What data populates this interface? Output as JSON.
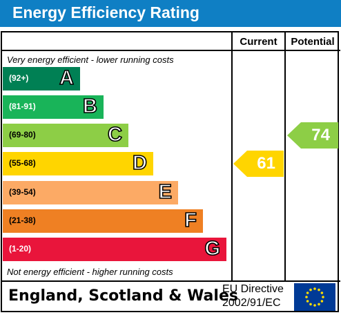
{
  "title": "Energy Efficiency Rating",
  "columns": {
    "current": "Current",
    "potential": "Potential"
  },
  "notes": {
    "top": "Very energy efficient - lower running costs",
    "bottom": "Not energy efficient - higher running costs"
  },
  "chart_data": {
    "type": "bar",
    "title": "Energy Efficiency Rating",
    "categories": [
      "A",
      "B",
      "C",
      "D",
      "E",
      "F",
      "G"
    ],
    "ranges": [
      "(92+)",
      "(81-91)",
      "(69-80)",
      "(55-68)",
      "(39-54)",
      "(21-38)",
      "(1-20)"
    ],
    "colors": [
      "#008054",
      "#19b459",
      "#8dce46",
      "#ffd500",
      "#fcaa65",
      "#ef8023",
      "#e9153b"
    ],
    "current": {
      "value": 61,
      "band": "D",
      "color": "#ffd500"
    },
    "potential": {
      "value": 74,
      "band": "C",
      "color": "#8dce46"
    }
  },
  "footer": {
    "region": "England, Scotland & Wales",
    "directive_line1": "EU Directive",
    "directive_line2": "2002/91/EC",
    "flag_icon": "eu-flag-icon"
  }
}
